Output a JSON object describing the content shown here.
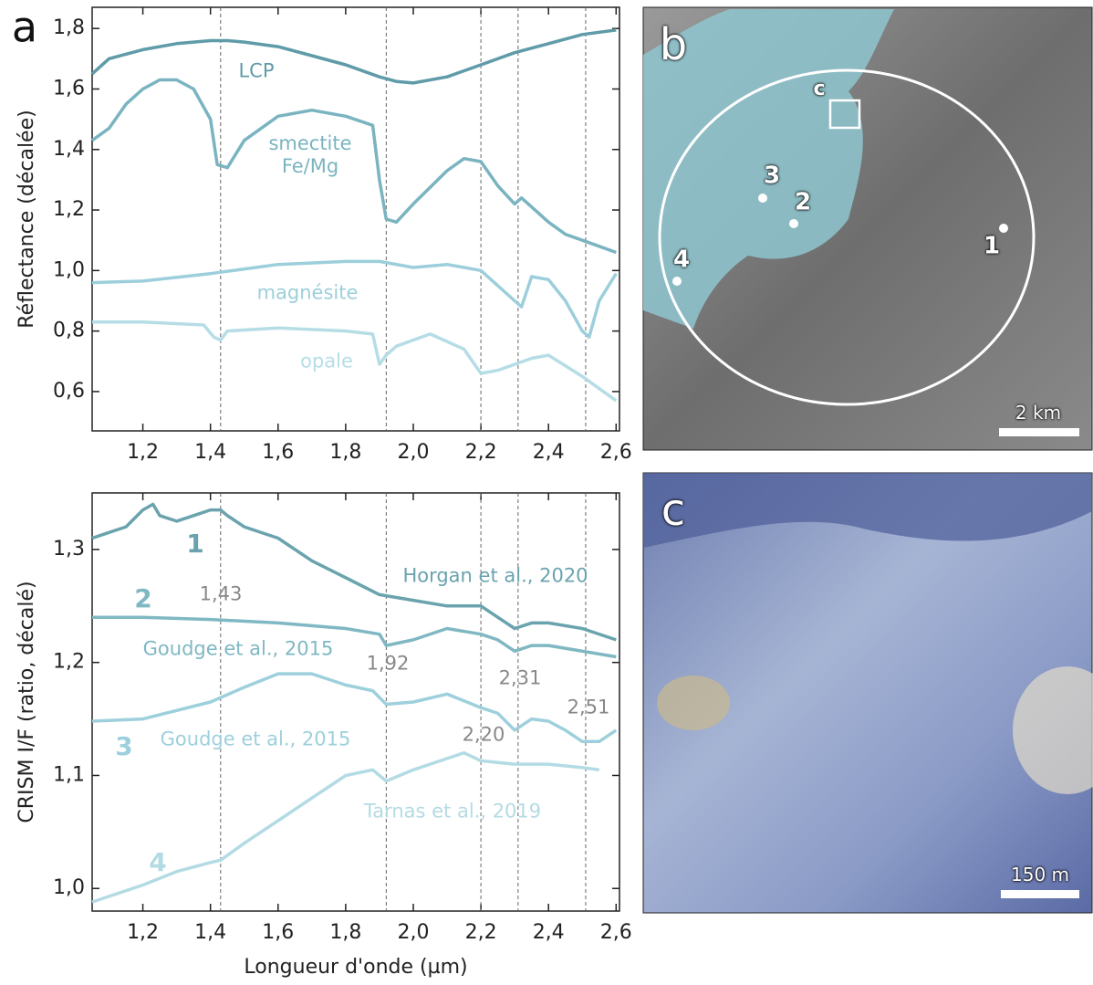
{
  "chart_data": [
    {
      "type": "line",
      "panel_label": "a",
      "y_label": "Réflectance (décalée)",
      "xlim": [
        1.05,
        2.61
      ],
      "ylim": [
        0.47,
        1.87
      ],
      "xticks": [
        {
          "value": 1.2,
          "label": "1,2"
        },
        {
          "value": 1.4,
          "label": "1,4"
        },
        {
          "value": 1.6,
          "label": "1,6"
        },
        {
          "value": 1.8,
          "label": "1,8"
        },
        {
          "value": 2.0,
          "label": "2,0"
        },
        {
          "value": 2.2,
          "label": "2,2"
        },
        {
          "value": 2.4,
          "label": "2,4"
        },
        {
          "value": 2.6,
          "label": "2,6"
        }
      ],
      "yticks": [
        {
          "value": 0.6,
          "label": "0,6"
        },
        {
          "value": 0.8,
          "label": "0,8"
        },
        {
          "value": 1.0,
          "label": "1,0"
        },
        {
          "value": 1.2,
          "label": "1,2"
        },
        {
          "value": 1.4,
          "label": "1,4"
        },
        {
          "value": 1.6,
          "label": "1,6"
        },
        {
          "value": 1.8,
          "label": "1,8"
        }
      ],
      "vlines": [
        1.43,
        1.92,
        2.2,
        2.31,
        2.51
      ],
      "series": [
        {
          "name": "LCP",
          "color": "#5f9ba8",
          "x": [
            1.05,
            1.1,
            1.2,
            1.3,
            1.4,
            1.45,
            1.5,
            1.6,
            1.7,
            1.8,
            1.9,
            1.95,
            2.0,
            2.1,
            2.2,
            2.3,
            2.4,
            2.5,
            2.6
          ],
          "values": [
            1.65,
            1.7,
            1.73,
            1.75,
            1.76,
            1.76,
            1.755,
            1.74,
            1.71,
            1.68,
            1.64,
            1.625,
            1.62,
            1.64,
            1.68,
            1.72,
            1.75,
            1.78,
            1.795
          ]
        },
        {
          "name": "smectite Fe/Mg",
          "color": "#7ab4c0",
          "x": [
            1.05,
            1.1,
            1.15,
            1.2,
            1.25,
            1.3,
            1.35,
            1.4,
            1.42,
            1.45,
            1.5,
            1.6,
            1.7,
            1.8,
            1.88,
            1.9,
            1.92,
            1.95,
            2.0,
            2.1,
            2.15,
            2.2,
            2.25,
            2.3,
            2.32,
            2.35,
            2.4,
            2.45,
            2.5,
            2.55,
            2.6
          ],
          "values": [
            1.43,
            1.47,
            1.55,
            1.6,
            1.63,
            1.63,
            1.6,
            1.5,
            1.35,
            1.34,
            1.43,
            1.51,
            1.53,
            1.51,
            1.48,
            1.3,
            1.17,
            1.16,
            1.22,
            1.33,
            1.37,
            1.36,
            1.28,
            1.22,
            1.24,
            1.21,
            1.16,
            1.12,
            1.1,
            1.08,
            1.06
          ]
        },
        {
          "name": "magnésite",
          "color": "#9ccfdb",
          "x": [
            1.05,
            1.2,
            1.4,
            1.6,
            1.8,
            1.9,
            2.0,
            2.1,
            2.2,
            2.25,
            2.3,
            2.32,
            2.35,
            2.4,
            2.45,
            2.5,
            2.52,
            2.55,
            2.6
          ],
          "values": [
            0.96,
            0.965,
            0.99,
            1.02,
            1.03,
            1.03,
            1.01,
            1.02,
            1.0,
            0.95,
            0.9,
            0.88,
            0.98,
            0.97,
            0.9,
            0.8,
            0.78,
            0.9,
            0.99
          ]
        },
        {
          "name": "opale",
          "color": "#b6dde6",
          "x": [
            1.05,
            1.2,
            1.38,
            1.41,
            1.43,
            1.45,
            1.6,
            1.8,
            1.88,
            1.9,
            1.92,
            1.95,
            2.05,
            2.15,
            2.2,
            2.25,
            2.35,
            2.4,
            2.5,
            2.6
          ],
          "values": [
            0.83,
            0.83,
            0.82,
            0.78,
            0.77,
            0.8,
            0.81,
            0.8,
            0.79,
            0.69,
            0.72,
            0.75,
            0.79,
            0.74,
            0.66,
            0.67,
            0.71,
            0.72,
            0.65,
            0.57
          ]
        }
      ]
    },
    {
      "type": "line",
      "x_label": "Longueur d'onde (µm)",
      "y_label": "CRISM I/F (ratio, décalé)",
      "xlim": [
        1.05,
        2.61
      ],
      "ylim": [
        0.98,
        1.35
      ],
      "xticks": [
        {
          "value": 1.2,
          "label": "1,2"
        },
        {
          "value": 1.4,
          "label": "1,4"
        },
        {
          "value": 1.6,
          "label": "1,6"
        },
        {
          "value": 1.8,
          "label": "1,8"
        },
        {
          "value": 2.0,
          "label": "2,0"
        },
        {
          "value": 2.2,
          "label": "2,2"
        },
        {
          "value": 2.4,
          "label": "2,4"
        },
        {
          "value": 2.6,
          "label": "2,6"
        }
      ],
      "yticks": [
        {
          "value": 1.0,
          "label": "1,0"
        },
        {
          "value": 1.1,
          "label": "1,1"
        },
        {
          "value": 1.2,
          "label": "1,2"
        },
        {
          "value": 1.3,
          "label": "1,3"
        }
      ],
      "vlines": [
        {
          "value": 1.43,
          "label": "1,43"
        },
        {
          "value": 1.92,
          "label": "1,92"
        },
        {
          "value": 2.2,
          "label": "2,20"
        },
        {
          "value": 2.31,
          "label": "2,31"
        },
        {
          "value": 2.51,
          "label": "2,51"
        }
      ],
      "series": [
        {
          "name": "Horgan et al., 2020",
          "number": "1",
          "color": "#6aa3ae",
          "x": [
            1.05,
            1.1,
            1.15,
            1.2,
            1.23,
            1.25,
            1.3,
            1.35,
            1.4,
            1.43,
            1.45,
            1.5,
            1.6,
            1.7,
            1.8,
            1.9,
            2.0,
            2.1,
            2.2,
            2.25,
            2.3,
            2.35,
            2.4,
            2.5,
            2.6
          ],
          "values": [
            1.31,
            1.315,
            1.32,
            1.335,
            1.34,
            1.33,
            1.325,
            1.33,
            1.335,
            1.335,
            1.33,
            1.32,
            1.31,
            1.29,
            1.275,
            1.26,
            1.255,
            1.25,
            1.25,
            1.24,
            1.23,
            1.235,
            1.235,
            1.23,
            1.22
          ]
        },
        {
          "name": "Goudge et al., 2015",
          "number": "2",
          "color": "#7fb8c3",
          "x": [
            1.05,
            1.2,
            1.4,
            1.6,
            1.8,
            1.9,
            1.92,
            2.0,
            2.1,
            2.2,
            2.25,
            2.3,
            2.35,
            2.4,
            2.5,
            2.6
          ],
          "values": [
            1.24,
            1.24,
            1.238,
            1.235,
            1.23,
            1.225,
            1.215,
            1.22,
            1.23,
            1.225,
            1.22,
            1.21,
            1.215,
            1.215,
            1.21,
            1.205
          ]
        },
        {
          "name": "Goudge et al., 2015",
          "number": "3",
          "color": "#9dd0dc",
          "x": [
            1.05,
            1.2,
            1.4,
            1.5,
            1.6,
            1.7,
            1.8,
            1.88,
            1.92,
            2.0,
            2.1,
            2.2,
            2.25,
            2.3,
            2.35,
            2.4,
            2.45,
            2.5,
            2.55,
            2.6
          ],
          "values": [
            1.148,
            1.15,
            1.165,
            1.178,
            1.19,
            1.19,
            1.18,
            1.175,
            1.163,
            1.165,
            1.172,
            1.16,
            1.155,
            1.14,
            1.15,
            1.148,
            1.14,
            1.13,
            1.13,
            1.14
          ]
        },
        {
          "name": "Tarnas et al., 2019",
          "number": "4",
          "color": "#b3dbe4",
          "x": [
            1.05,
            1.1,
            1.2,
            1.3,
            1.4,
            1.43,
            1.5,
            1.6,
            1.7,
            1.8,
            1.88,
            1.92,
            2.0,
            2.1,
            2.15,
            2.2,
            2.3,
            2.4,
            2.5,
            2.55
          ],
          "values": [
            0.988,
            0.993,
            1.003,
            1.015,
            1.023,
            1.025,
            1.04,
            1.06,
            1.08,
            1.1,
            1.105,
            1.095,
            1.105,
            1.115,
            1.12,
            1.113,
            1.11,
            1.11,
            1.107,
            1.105
          ]
        }
      ]
    }
  ],
  "map_b": {
    "panel_label": "b",
    "inset_label": "c",
    "sites": [
      "1",
      "2",
      "3",
      "4"
    ],
    "scale": "2 km"
  },
  "map_c": {
    "panel_label": "c",
    "scale": "150 m"
  }
}
